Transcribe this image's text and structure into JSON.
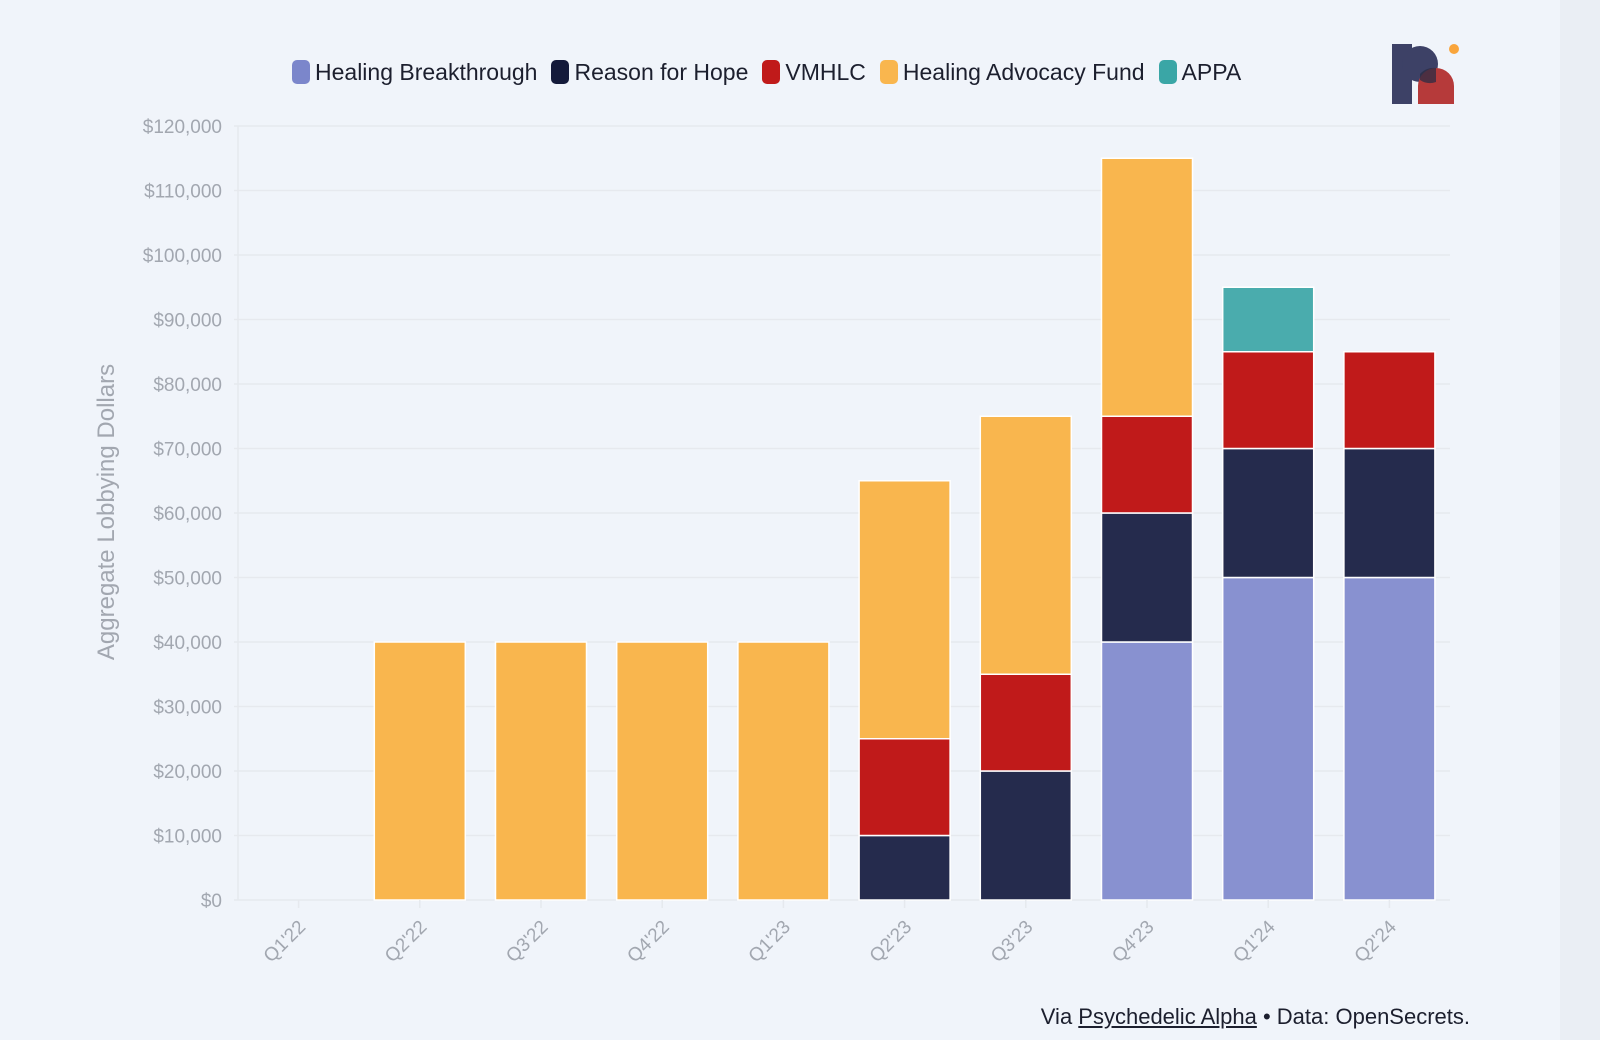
{
  "chart_data": {
    "type": "bar",
    "stacked": true,
    "title": "",
    "xlabel": "",
    "ylabel": "Aggregate Lobbying Dollars",
    "ylim": [
      0,
      120000
    ],
    "ytick_values": [
      0,
      10000,
      20000,
      30000,
      40000,
      50000,
      60000,
      70000,
      80000,
      90000,
      100000,
      110000,
      120000
    ],
    "ytick_labels": [
      "$0",
      "$10,000",
      "$20,000",
      "$30,000",
      "$40,000",
      "$50,000",
      "$60,000",
      "$70,000",
      "$80,000",
      "$90,000",
      "$100,000",
      "$110,000",
      "$120,000"
    ],
    "categories": [
      "Q1'22",
      "Q2'22",
      "Q3'22",
      "Q4'22",
      "Q1'23",
      "Q2'23",
      "Q3'23",
      "Q4'23",
      "Q1'24",
      "Q2'24"
    ],
    "legend_position": "top",
    "grid": true,
    "series": [
      {
        "name": "Healing Breakthrough",
        "color": "#8891d0",
        "values": [
          0,
          0,
          0,
          0,
          0,
          0,
          0,
          40000,
          50000,
          50000
        ]
      },
      {
        "name": "Reason for Hope",
        "color": "#252b4d",
        "values": [
          0,
          0,
          0,
          0,
          0,
          10000,
          20000,
          20000,
          20000,
          20000
        ]
      },
      {
        "name": "VMHLC",
        "color": "#c01a1a",
        "values": [
          0,
          0,
          0,
          0,
          0,
          15000,
          15000,
          15000,
          15000,
          15000
        ]
      },
      {
        "name": "Healing Advocacy Fund",
        "color": "#f9b64e",
        "values": [
          0,
          40000,
          40000,
          40000,
          40000,
          40000,
          40000,
          40000,
          0,
          0
        ]
      },
      {
        "name": "APPA",
        "color": "#4aacad",
        "values": [
          0,
          0,
          0,
          0,
          0,
          0,
          0,
          0,
          10000,
          0
        ]
      }
    ],
    "legend_swatch_colors": [
      "#7b86cb",
      "#141a3a",
      "#c01a1a",
      "#f9b64e",
      "#3aa6a6"
    ]
  },
  "footer": {
    "prefix": "Via ",
    "link_text": "Psychedelic Alpha",
    "suffix": " • Data: OpenSecrets."
  },
  "colors": {
    "background": "#f0f4fa",
    "grid": "#e6e9ee",
    "tick_text": "#a2a7b0",
    "logo_navy": "#3d4166",
    "logo_red": "#b63a3a",
    "logo_orange": "#f9a53c"
  }
}
